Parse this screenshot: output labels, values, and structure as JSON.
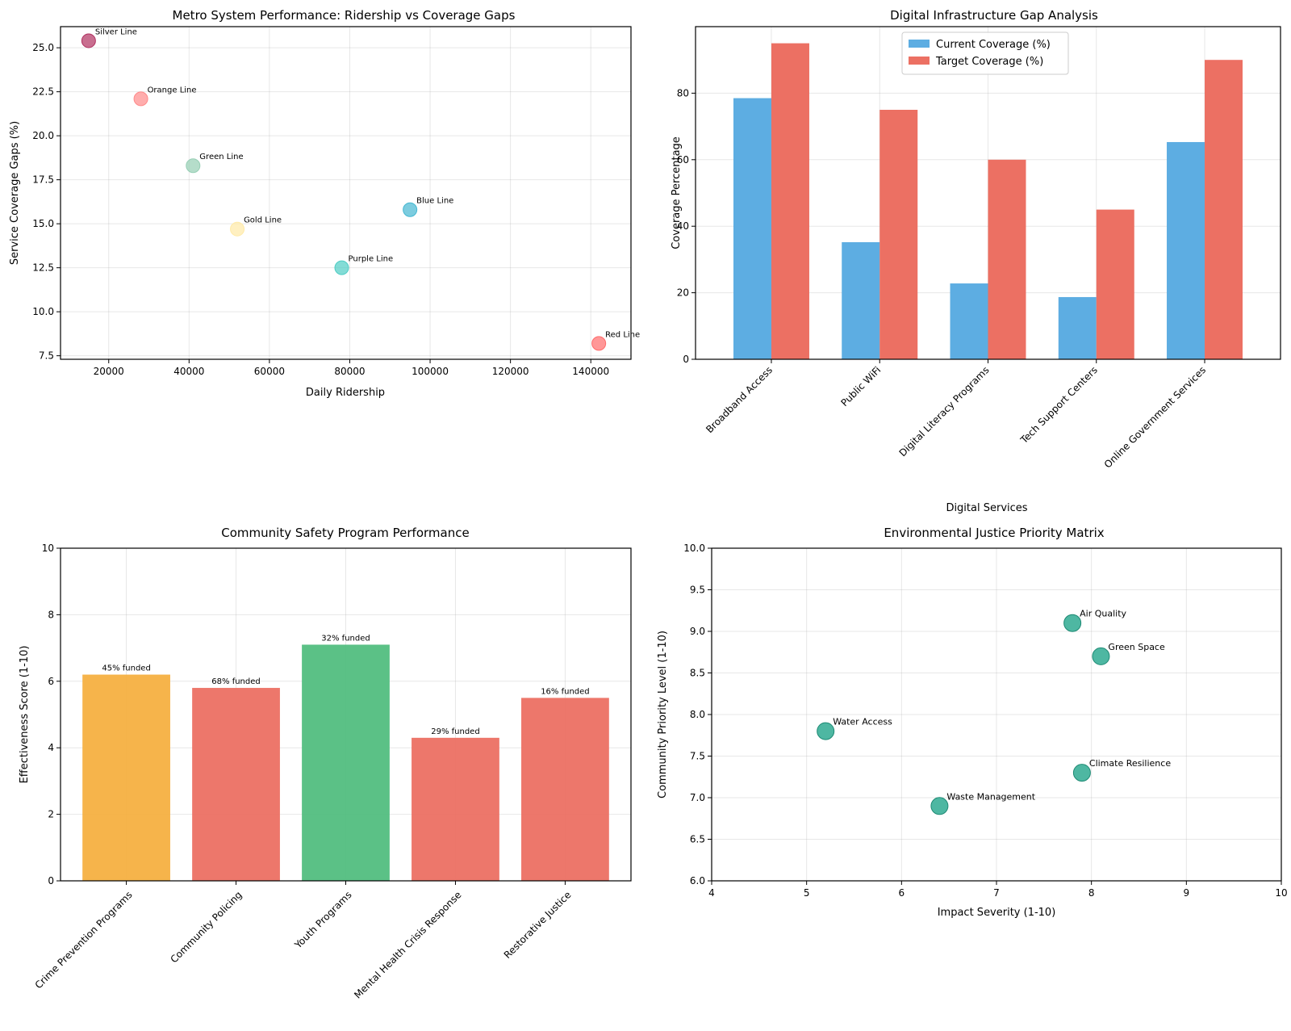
{
  "chart_data": [
    {
      "type": "scatter",
      "title": "Metro System Performance: Ridership vs Coverage Gaps",
      "xlabel": "Daily Ridership",
      "ylabel": "Service Coverage Gaps (%)",
      "xlim": [
        8000,
        150000
      ],
      "ylim": [
        7.3,
        26.2
      ],
      "xticks": [
        20000,
        40000,
        60000,
        80000,
        100000,
        120000,
        140000
      ],
      "yticks": [
        7.5,
        10.0,
        12.5,
        15.0,
        17.5,
        20.0,
        22.5,
        25.0
      ],
      "points": [
        {
          "label": "Red Line",
          "x": 142000,
          "y": 8.2,
          "color": "#ff6b6b"
        },
        {
          "label": "Blue Line",
          "x": 95000,
          "y": 15.8,
          "color": "#45b7d1"
        },
        {
          "label": "Green Line",
          "x": 41000,
          "y": 18.3,
          "color": "#96ceb4"
        },
        {
          "label": "Orange Line",
          "x": 28000,
          "y": 22.1,
          "color": "#ff8a8a"
        },
        {
          "label": "Purple Line",
          "x": 78000,
          "y": 12.5,
          "color": "#4ecdc4"
        },
        {
          "label": "Silver Line",
          "x": 15000,
          "y": 25.4,
          "color": "#b03060"
        },
        {
          "label": "Gold Line",
          "x": 52000,
          "y": 14.7,
          "color": "#ffeaa7"
        }
      ]
    },
    {
      "type": "bar",
      "title": "Digital Infrastructure Gap Analysis",
      "xlabel": "Digital Services",
      "ylabel": "Coverage Percentage",
      "ylim": [
        0,
        100
      ],
      "yticks": [
        0,
        20,
        40,
        60,
        80
      ],
      "categories": [
        "Broadband Access",
        "Public WiFi",
        "Digital Literacy Programs",
        "Tech Support Centers",
        "Online Government Services"
      ],
      "series": [
        {
          "name": "Current Coverage (%)",
          "color": "#5dade2",
          "values": [
            78.5,
            35.2,
            22.8,
            18.7,
            65.3
          ]
        },
        {
          "name": "Target Coverage (%)",
          "color": "#ec7063",
          "values": [
            95,
            75,
            60,
            45,
            90
          ]
        }
      ],
      "legend": "top-center"
    },
    {
      "type": "bar",
      "title": "Community Safety Program Performance",
      "xlabel": "",
      "ylabel": "Effectiveness Score (1-10)",
      "ylim": [
        0,
        10
      ],
      "yticks": [
        0,
        2,
        4,
        6,
        8,
        10
      ],
      "categories": [
        "Crime Prevention Programs",
        "Community Policing",
        "Youth Programs",
        "Mental Health Crisis Response",
        "Restorative Justice"
      ],
      "values": [
        6.2,
        5.8,
        7.1,
        4.3,
        5.5
      ],
      "colors": [
        "#f5b041",
        "#ec7063",
        "#52be80",
        "#ec7063",
        "#ec7063"
      ],
      "bar_labels": [
        "45% funded",
        "68% funded",
        "32% funded",
        "29% funded",
        "16% funded"
      ]
    },
    {
      "type": "scatter",
      "title": "Environmental Justice Priority Matrix",
      "xlabel": "Impact Severity (1-10)",
      "ylabel": "Community Priority Level (1-10)",
      "xlim": [
        4,
        10
      ],
      "ylim": [
        6,
        10
      ],
      "xticks": [
        4,
        5,
        6,
        7,
        8,
        9,
        10
      ],
      "yticks": [
        6.0,
        6.5,
        7.0,
        7.5,
        8.0,
        8.5,
        9.0,
        9.5,
        10.0
      ],
      "color": "#45b39d",
      "points": [
        {
          "label": "Air Quality",
          "x": 7.8,
          "y": 9.1
        },
        {
          "label": "Water Access",
          "x": 5.2,
          "y": 7.8
        },
        {
          "label": "Green Space",
          "x": 8.1,
          "y": 8.7
        },
        {
          "label": "Waste Management",
          "x": 6.4,
          "y": 6.9
        },
        {
          "label": "Climate Resilience",
          "x": 7.9,
          "y": 7.3
        }
      ]
    }
  ]
}
